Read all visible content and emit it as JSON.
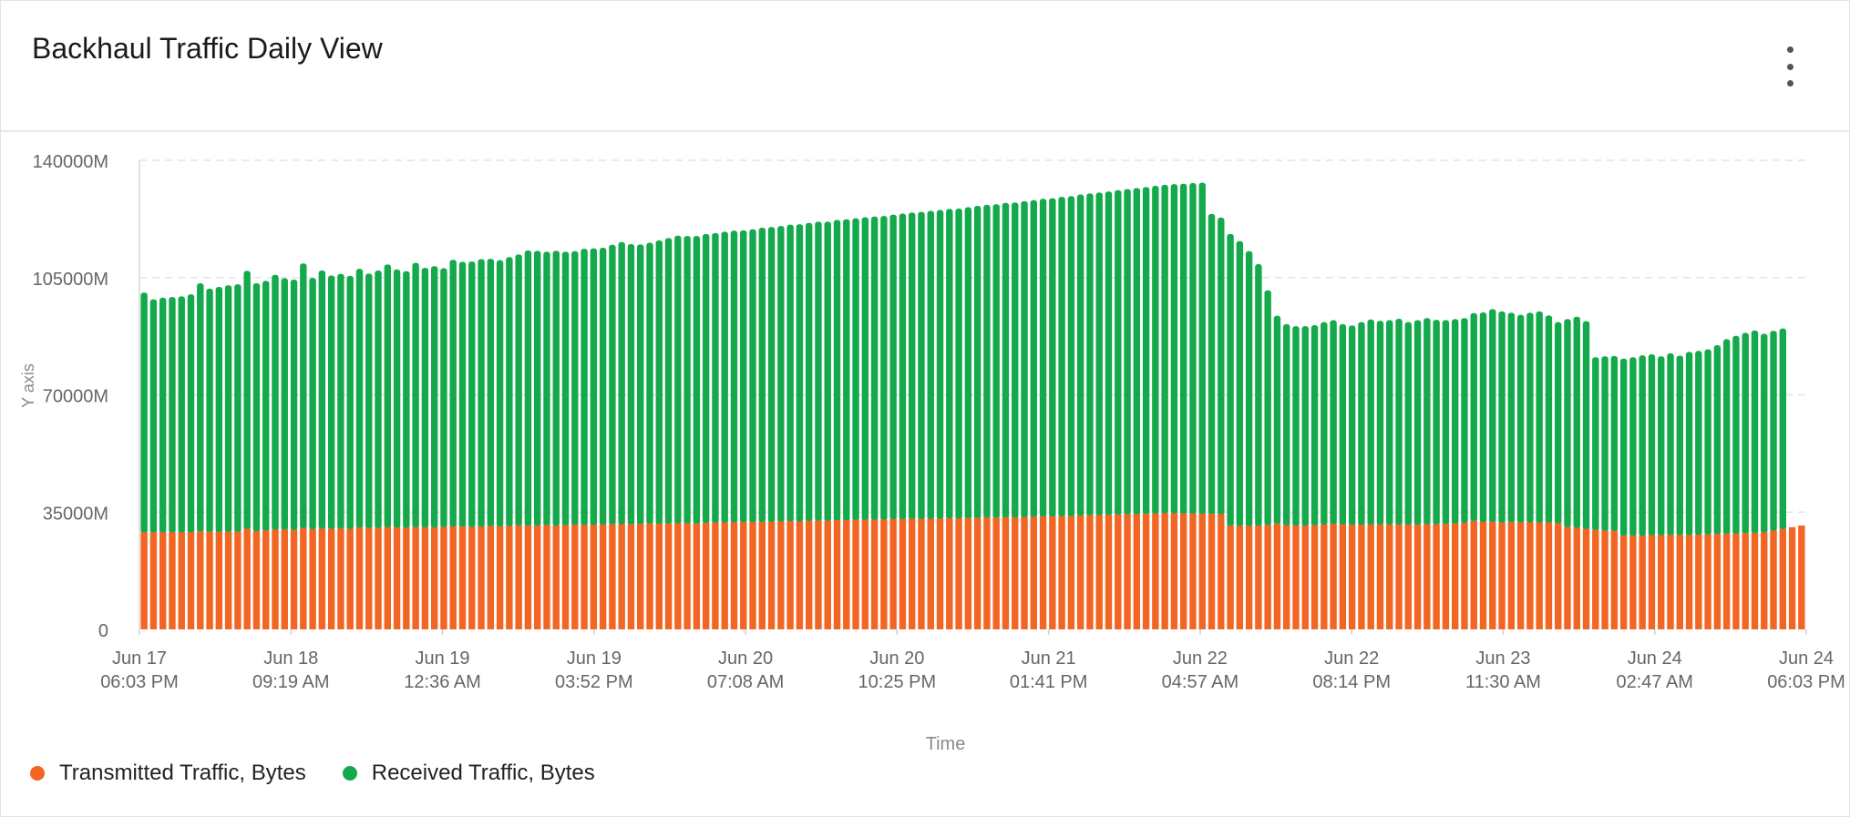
{
  "panel": {
    "title": "Backhaul Traffic Daily View",
    "menu_icon": "more-vertical-icon"
  },
  "colors": {
    "transmitted": "#f26522",
    "received": "#14a94b",
    "grid": "#e4e4e4",
    "axis_text": "#666666"
  },
  "legend": [
    {
      "label": "Transmitted Traffic, Bytes",
      "color": "#f26522"
    },
    {
      "label": "Received Traffic, Bytes",
      "color": "#14a94b"
    }
  ],
  "chart_data": {
    "type": "bar",
    "stacked": true,
    "title": "Backhaul Traffic Daily View",
    "xlabel": "Time",
    "ylabel": "Y axis",
    "ylim": [
      0,
      140000
    ],
    "y_unit": "M",
    "y_ticks": [
      "0",
      "35000M",
      "70000M",
      "105000M",
      "140000M"
    ],
    "y_tick_values": [
      0,
      35000,
      70000,
      105000,
      140000
    ],
    "grid": true,
    "legend_position": "bottom-left",
    "x_ticks": [
      [
        "Jun 17",
        "06:03 PM"
      ],
      [
        "Jun 18",
        "09:19 AM"
      ],
      [
        "Jun 19",
        "12:36 AM"
      ],
      [
        "Jun 19",
        "03:52 PM"
      ],
      [
        "Jun 20",
        "07:08 AM"
      ],
      [
        "Jun 20",
        "10:25 PM"
      ],
      [
        "Jun 21",
        "01:41 PM"
      ],
      [
        "Jun 22",
        "04:57 AM"
      ],
      [
        "Jun 22",
        "08:14 PM"
      ],
      [
        "Jun 23",
        "11:30 AM"
      ],
      [
        "Jun 24",
        "02:47 AM"
      ],
      [
        "Jun 24",
        "06:03 PM"
      ]
    ],
    "x_start": "Jun 17 06:03 PM",
    "x_end": "Jun 24 06:03 PM",
    "series": [
      {
        "name": "Transmitted Traffic, Bytes",
        "values": [
          29000,
          29000,
          29000,
          29000,
          29000,
          29000,
          29300,
          29200,
          29200,
          29200,
          29200,
          30000,
          29300,
          29500,
          29800,
          29800,
          29700,
          30200,
          29900,
          30100,
          30000,
          30100,
          30000,
          30400,
          30200,
          30300,
          30500,
          30400,
          30300,
          30500,
          30400,
          30400,
          30600,
          30700,
          30700,
          30600,
          30700,
          30900,
          30800,
          30900,
          31100,
          31000,
          31000,
          31200,
          31000,
          31100,
          31200,
          31200,
          31200,
          31300,
          31400,
          31400,
          31400,
          31500,
          31600,
          31500,
          31600,
          31700,
          31700,
          31600,
          31800,
          31900,
          31900,
          32000,
          32000,
          32000,
          32100,
          32100,
          32200,
          32300,
          32200,
          32400,
          32500,
          32400,
          32600,
          32600,
          32700,
          32700,
          32800,
          32800,
          32900,
          32900,
          33000,
          33000,
          33000,
          33100,
          33200,
          33100,
          33200,
          33300,
          33400,
          33400,
          33500,
          33400,
          33500,
          33600,
          33700,
          33700,
          33800,
          33800,
          34000,
          34100,
          34100,
          34200,
          34300,
          34400,
          34400,
          34500,
          34600,
          34700,
          34700,
          34600,
          34600,
          34500,
          34500,
          34400,
          31000,
          30900,
          30900,
          31000,
          31200,
          31600,
          31100,
          31000,
          31000,
          31100,
          31300,
          31500,
          31300,
          31200,
          31200,
          31300,
          31300,
          31300,
          31300,
          31300,
          31300,
          31400,
          31400,
          31500,
          31600,
          31800,
          32400,
          32100,
          32100,
          31900,
          32000,
          31900,
          32000,
          31900,
          31900,
          31700,
          30600,
          30300,
          30000,
          29700,
          29500,
          29400,
          28000,
          28000,
          28000,
          28100,
          28100,
          28200,
          28200,
          28200,
          28300,
          28400,
          28500,
          28600,
          28600,
          28700,
          28800,
          29000,
          29500,
          30000,
          30500,
          31000
        ]
      },
      {
        "name": "Received Traffic, Bytes",
        "values": [
          71500,
          69500,
          70000,
          70200,
          70400,
          71000,
          74000,
          72500,
          73000,
          73500,
          73800,
          77000,
          74000,
          74500,
          76000,
          75000,
          74700,
          79000,
          75000,
          77000,
          75600,
          76000,
          75500,
          77200,
          76000,
          76800,
          78400,
          77000,
          76600,
          78900,
          77500,
          78000,
          77200,
          79600,
          79000,
          79200,
          79800,
          79700,
          79400,
          80200,
          80800,
          82100,
          82000,
          81500,
          82000,
          81600,
          81700,
          82400,
          82500,
          82600,
          83400,
          84200,
          83600,
          83400,
          83800,
          84600,
          85200,
          85800,
          85700,
          85800,
          86200,
          86400,
          86800,
          87000,
          87100,
          87400,
          87800,
          88000,
          88200,
          88500,
          88700,
          88900,
          89200,
          89300,
          89600,
          89800,
          90000,
          90300,
          90400,
          90600,
          90900,
          91200,
          91400,
          91600,
          91900,
          92100,
          92300,
          92500,
          92800,
          93100,
          93300,
          93500,
          93800,
          94000,
          94300,
          94500,
          94800,
          95000,
          95300,
          95500,
          95800,
          96000,
          96300,
          96500,
          96800,
          97000,
          97300,
          97500,
          97800,
          98000,
          98200,
          98400,
          98600,
          98800,
          89500,
          88500,
          87000,
          85000,
          82000,
          78000,
          70000,
          62000,
          60000,
          59500,
          59500,
          59700,
          60400,
          60800,
          59800,
          59500,
          60500,
          61200,
          60800,
          61000,
          61400,
          60400,
          61000,
          61500,
          61000,
          60800,
          61000,
          61100,
          62000,
          62500,
          63500,
          63000,
          62500,
          62000,
          62500,
          63000,
          61800,
          60000,
          62000,
          63000,
          62000,
          51500,
          52000,
          52200,
          52800,
          53200,
          53800,
          54000,
          53400,
          54200,
          53500,
          54600,
          54800,
          55200,
          56300,
          58000,
          59000,
          59800,
          60400,
          59200,
          59600,
          59800
        ]
      }
    ]
  }
}
